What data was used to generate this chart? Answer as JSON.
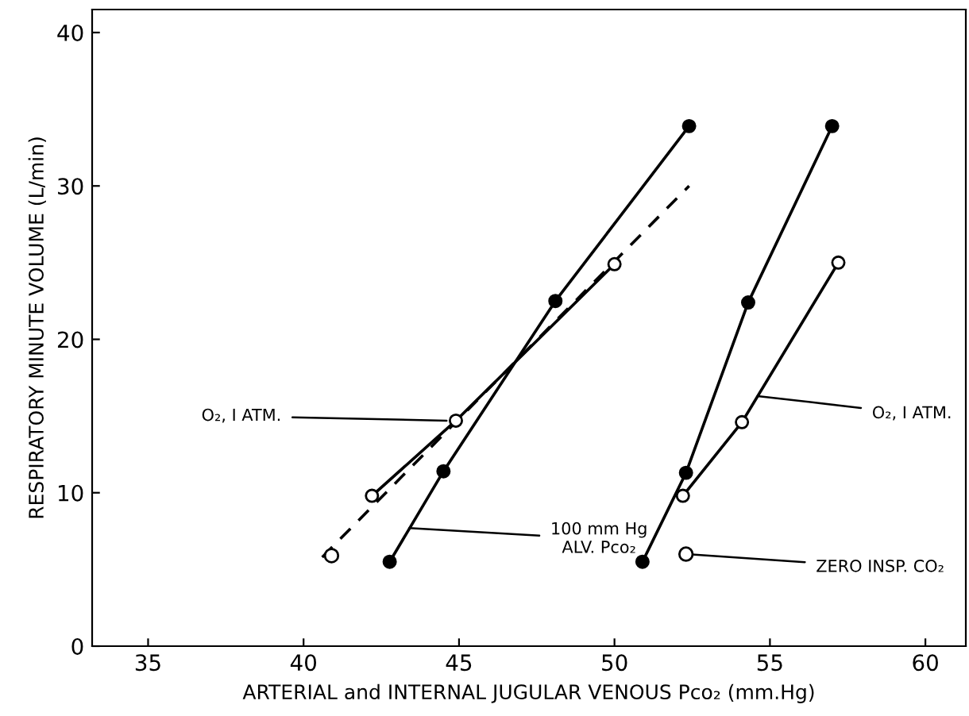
{
  "chart_data": {
    "type": "line",
    "xlabel": "ARTERIAL and INTERNAL JUGULAR VENOUS Pco₂ (mm.Hg)",
    "ylabel": "RESPIRATORY MINUTE VOLUME (L/min)",
    "xlim": [
      33.2,
      61.3
    ],
    "ylim": [
      0,
      41.5
    ],
    "xticks": [
      35,
      40,
      45,
      50,
      55,
      60
    ],
    "yticks": [
      0,
      10,
      20,
      30,
      40
    ],
    "grid": false,
    "series": [
      {
        "color": "#000000",
        "x": [
          42.77,
          44.5,
          48.1,
          52.4
        ],
        "values": [
          5.5,
          11.4,
          22.5,
          33.9
        ],
        "marker": "circle"
      },
      {
        "color": "#000000",
        "x": [
          40.6,
          52.4
        ],
        "values": [
          5.8,
          30.0
        ],
        "marker": "none",
        "line_style": "dashed"
      },
      {
        "color": "#000000",
        "colors": [
          "#ffffff",
          "#ffffff",
          "#ffffff"
        ],
        "x": [
          42.2,
          44.9,
          50.0
        ],
        "values": [
          9.8,
          14.7,
          24.9
        ],
        "marker": "circle"
      },
      {
        "type": "scatter",
        "color": "#000000",
        "colors": [
          "#ffffff",
          "#ffffff"
        ],
        "x": [
          40.9,
          52.3
        ],
        "values": [
          5.9,
          6.0
        ],
        "marker": "circle"
      },
      {
        "color": "#000000",
        "x": [
          50.9,
          52.3,
          54.3,
          57.0
        ],
        "values": [
          5.5,
          11.3,
          22.4,
          33.9
        ],
        "marker": "circle"
      },
      {
        "color": "#000000",
        "colors": [
          "#ffffff",
          "#ffffff",
          "#ffffff"
        ],
        "x": [
          52.2,
          54.1,
          57.2
        ],
        "values": [
          9.8,
          14.6,
          25.0
        ],
        "marker": "circle"
      }
    ],
    "annotations": [
      {
        "text": "O₂, I ATM.",
        "x": 44.6,
        "y": 14.7
      },
      {
        "text": "O₂, I ATM.",
        "x": 54.6,
        "y": 16.3
      },
      {
        "text": "100 mm Hg\nALV. Pco₂",
        "x": 43.4,
        "y": 7.7
      },
      {
        "text": "ZERO INSP. CO₂",
        "x": 52.3,
        "y": 6.0
      }
    ]
  }
}
